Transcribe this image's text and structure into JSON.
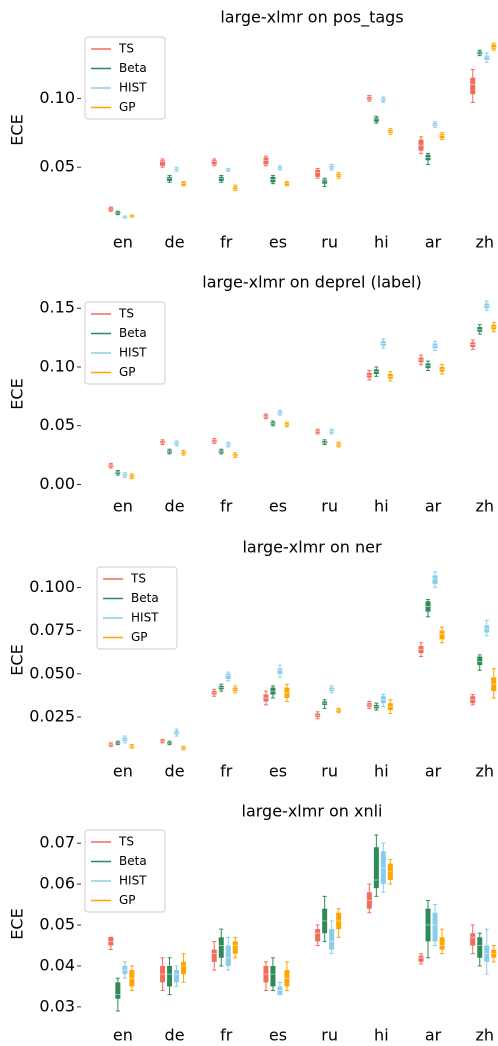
{
  "chart_data": [
    {
      "type": "box",
      "title": "large-xlmr on pos_tags",
      "ylabel": "ECE",
      "categories": [
        "en",
        "de",
        "fr",
        "es",
        "ru",
        "hi",
        "ar",
        "zh"
      ],
      "ylim": [
        0.008,
        0.146
      ],
      "yticks": [
        0.05,
        {
          "value": 0.1,
          "label": "0.10"
        }
      ],
      "legend": "upper left",
      "series": [
        {
          "name": "TS",
          "color": "#f26b5b",
          "values": [
            0.0196,
            0.054,
            0.054,
            0.055,
            0.046,
            0.1,
            0.066,
            0.11
          ],
          "q1": [
            0.0185,
            0.051,
            0.052,
            0.052,
            0.043,
            0.099,
            0.062,
            0.103
          ],
          "q3": [
            0.0205,
            0.055,
            0.055,
            0.057,
            0.048,
            0.101,
            0.07,
            0.115
          ],
          "low": [
            0.018,
            0.05,
            0.051,
            0.051,
            0.042,
            0.098,
            0.06,
            0.097
          ],
          "high": [
            0.021,
            0.056,
            0.056,
            0.058,
            0.049,
            0.102,
            0.072,
            0.121
          ]
        },
        {
          "name": "Beta",
          "color": "#2e8b57",
          "values": [
            0.0167,
            0.042,
            0.042,
            0.041,
            0.04,
            0.085,
            0.057,
            0.133
          ],
          "q1": [
            0.016,
            0.04,
            0.04,
            0.039,
            0.038,
            0.083,
            0.055,
            0.132
          ],
          "q3": [
            0.0175,
            0.043,
            0.043,
            0.043,
            0.041,
            0.086,
            0.059,
            0.134
          ],
          "low": [
            0.0155,
            0.039,
            0.039,
            0.038,
            0.036,
            0.082,
            0.052,
            0.131
          ],
          "high": [
            0.018,
            0.044,
            0.044,
            0.044,
            0.042,
            0.087,
            0.06,
            0.135
          ]
        },
        {
          "name": "HIST",
          "color": "#87ceeb",
          "values": [
            0.0138,
            0.0485,
            0.048,
            0.049,
            0.05,
            0.099,
            0.081,
            0.13
          ],
          "q1": [
            0.0135,
            0.048,
            0.0475,
            0.0485,
            0.049,
            0.098,
            0.08,
            0.128
          ],
          "q3": [
            0.0142,
            0.049,
            0.0485,
            0.05,
            0.051,
            0.1,
            0.082,
            0.131
          ],
          "low": [
            0.013,
            0.047,
            0.047,
            0.048,
            0.048,
            0.097,
            0.079,
            0.126
          ],
          "high": [
            0.0145,
            0.05,
            0.049,
            0.051,
            0.052,
            0.101,
            0.083,
            0.133
          ]
        },
        {
          "name": "GP",
          "color": "#ffa500",
          "values": [
            0.0145,
            0.038,
            0.035,
            0.038,
            0.044,
            0.076,
            0.073,
            0.137
          ],
          "q1": [
            0.014,
            0.037,
            0.034,
            0.037,
            0.043,
            0.075,
            0.071,
            0.136
          ],
          "q3": [
            0.015,
            0.039,
            0.036,
            0.039,
            0.045,
            0.077,
            0.074,
            0.139
          ],
          "low": [
            0.0138,
            0.0365,
            0.033,
            0.0365,
            0.042,
            0.074,
            0.07,
            0.135
          ],
          "high": [
            0.0152,
            0.0395,
            0.037,
            0.0395,
            0.046,
            0.078,
            0.075,
            0.14
          ]
        }
      ]
    },
    {
      "type": "box",
      "title": "large-xlmr on deprel (label)",
      "ylabel": "ECE",
      "categories": [
        "en",
        "de",
        "fr",
        "es",
        "ru",
        "hi",
        "ar",
        "zh"
      ],
      "ylim": [
        -0.003,
        0.157
      ],
      "yticks": [
        {
          "value": 0,
          "label": "0.00"
        },
        0.05,
        {
          "value": 0.1,
          "label": "0.10"
        },
        0.15
      ],
      "legend": "upper left",
      "series": [
        {
          "name": "TS",
          "color": "#f26b5b",
          "values": [
            0.016,
            0.036,
            0.037,
            0.058,
            0.045,
            0.093,
            0.106,
            0.119
          ],
          "q1": [
            0.015,
            0.035,
            0.036,
            0.057,
            0.044,
            0.091,
            0.104,
            0.117
          ],
          "q3": [
            0.017,
            0.037,
            0.038,
            0.059,
            0.046,
            0.095,
            0.108,
            0.121
          ],
          "low": [
            0.014,
            0.034,
            0.035,
            0.056,
            0.043,
            0.089,
            0.102,
            0.115
          ],
          "high": [
            0.018,
            0.038,
            0.039,
            0.06,
            0.047,
            0.097,
            0.11,
            0.123
          ]
        },
        {
          "name": "Beta",
          "color": "#2e8b57",
          "values": [
            0.01,
            0.028,
            0.028,
            0.052,
            0.036,
            0.096,
            0.101,
            0.132
          ],
          "q1": [
            0.009,
            0.027,
            0.027,
            0.051,
            0.035,
            0.094,
            0.099,
            0.13
          ],
          "q3": [
            0.011,
            0.029,
            0.029,
            0.053,
            0.037,
            0.098,
            0.103,
            0.134
          ],
          "low": [
            0.008,
            0.026,
            0.026,
            0.05,
            0.034,
            0.092,
            0.097,
            0.128
          ],
          "high": [
            0.012,
            0.03,
            0.03,
            0.054,
            0.038,
            0.1,
            0.105,
            0.136
          ]
        },
        {
          "name": "HIST",
          "color": "#87ceeb",
          "values": [
            0.008,
            0.035,
            0.034,
            0.061,
            0.045,
            0.12,
            0.118,
            0.152
          ],
          "q1": [
            0.007,
            0.034,
            0.033,
            0.06,
            0.044,
            0.118,
            0.116,
            0.15
          ],
          "q3": [
            0.009,
            0.036,
            0.035,
            0.062,
            0.046,
            0.122,
            0.12,
            0.154
          ],
          "low": [
            0.006,
            0.033,
            0.032,
            0.059,
            0.043,
            0.116,
            0.114,
            0.148
          ],
          "high": [
            0.01,
            0.037,
            0.036,
            0.063,
            0.047,
            0.124,
            0.122,
            0.156
          ]
        },
        {
          "name": "GP",
          "color": "#ffa500",
          "values": [
            0.007,
            0.027,
            0.025,
            0.051,
            0.034,
            0.092,
            0.098,
            0.134
          ],
          "q1": [
            0.006,
            0.026,
            0.024,
            0.05,
            0.033,
            0.09,
            0.096,
            0.132
          ],
          "q3": [
            0.008,
            0.028,
            0.026,
            0.052,
            0.035,
            0.094,
            0.1,
            0.136
          ],
          "low": [
            0.005,
            0.025,
            0.023,
            0.049,
            0.032,
            0.088,
            0.094,
            0.13
          ],
          "high": [
            0.009,
            0.029,
            0.027,
            0.053,
            0.036,
            0.096,
            0.102,
            0.138
          ]
        }
      ]
    },
    {
      "type": "box",
      "title": "large-xlmr on ner",
      "ylabel": "ECE",
      "categories": [
        "en",
        "de",
        "fr",
        "es",
        "ru",
        "hi",
        "ar",
        "zh"
      ],
      "ylim": [
        0.003,
        0.113
      ],
      "yticks": [
        0.025,
        {
          "value": 0.05,
          "label": "0.050"
        },
        0.075,
        {
          "value": 0.1,
          "label": "0.100"
        }
      ],
      "legend": "upper left",
      "series": [
        {
          "name": "TS",
          "color": "#f26b5b",
          "values": [
            0.009,
            0.011,
            0.039,
            0.036,
            0.026,
            0.032,
            0.064,
            0.035
          ],
          "q1": [
            0.0085,
            0.0105,
            0.038,
            0.034,
            0.025,
            0.031,
            0.062,
            0.033
          ],
          "q3": [
            0.0095,
            0.0115,
            0.04,
            0.038,
            0.027,
            0.033,
            0.066,
            0.037
          ],
          "low": [
            0.008,
            0.01,
            0.037,
            0.032,
            0.024,
            0.03,
            0.06,
            0.032
          ],
          "high": [
            0.01,
            0.012,
            0.041,
            0.04,
            0.028,
            0.034,
            0.068,
            0.038
          ]
        },
        {
          "name": "Beta",
          "color": "#2e8b57",
          "values": [
            0.01,
            0.01,
            0.042,
            0.04,
            0.033,
            0.031,
            0.089,
            0.057
          ],
          "q1": [
            0.0095,
            0.0095,
            0.041,
            0.038,
            0.032,
            0.03,
            0.086,
            0.055
          ],
          "q3": [
            0.0105,
            0.0105,
            0.043,
            0.042,
            0.034,
            0.032,
            0.092,
            0.06
          ],
          "low": [
            0.009,
            0.009,
            0.04,
            0.036,
            0.03,
            0.029,
            0.083,
            0.052
          ],
          "high": [
            0.011,
            0.011,
            0.044,
            0.043,
            0.035,
            0.033,
            0.093,
            0.061
          ]
        },
        {
          "name": "HIST",
          "color": "#87ceeb",
          "values": [
            0.012,
            0.016,
            0.049,
            0.052,
            0.041,
            0.035,
            0.105,
            0.076
          ],
          "q1": [
            0.011,
            0.015,
            0.047,
            0.05,
            0.04,
            0.033,
            0.102,
            0.074
          ],
          "q3": [
            0.013,
            0.017,
            0.05,
            0.053,
            0.042,
            0.037,
            0.107,
            0.078
          ],
          "low": [
            0.01,
            0.014,
            0.046,
            0.048,
            0.039,
            0.031,
            0.1,
            0.072
          ],
          "high": [
            0.014,
            0.018,
            0.051,
            0.055,
            0.043,
            0.038,
            0.109,
            0.081
          ]
        },
        {
          "name": "GP",
          "color": "#ffa500",
          "values": [
            0.008,
            0.007,
            0.041,
            0.039,
            0.029,
            0.031,
            0.073,
            0.044
          ],
          "q1": [
            0.0075,
            0.0065,
            0.04,
            0.036,
            0.028,
            0.029,
            0.07,
            0.04
          ],
          "q3": [
            0.0085,
            0.0075,
            0.042,
            0.042,
            0.0295,
            0.033,
            0.075,
            0.048
          ],
          "low": [
            0.007,
            0.006,
            0.039,
            0.034,
            0.0275,
            0.027,
            0.068,
            0.036
          ],
          "high": [
            0.009,
            0.008,
            0.043,
            0.044,
            0.03,
            0.035,
            0.077,
            0.053
          ]
        }
      ]
    },
    {
      "type": "box",
      "title": "large-xlmr on xnli",
      "ylabel": "ECE",
      "categories": [
        "en",
        "de",
        "fr",
        "es",
        "ru",
        "hi",
        "ar",
        "zh"
      ],
      "ylim": [
        0.0268,
        0.0737
      ],
      "yticks": [
        0.03,
        0.04,
        0.05,
        0.06,
        0.07
      ],
      "legend": "upper left",
      "series": [
        {
          "name": "TS",
          "color": "#f26b5b",
          "values": [
            0.046,
            0.038,
            0.043,
            0.038,
            0.048,
            0.056,
            0.042,
            0.047
          ],
          "q1": [
            0.045,
            0.036,
            0.041,
            0.036,
            0.046,
            0.054,
            0.041,
            0.045
          ],
          "q3": [
            0.047,
            0.04,
            0.044,
            0.04,
            0.049,
            0.058,
            0.0425,
            0.048
          ],
          "low": [
            0.044,
            0.034,
            0.039,
            0.034,
            0.045,
            0.053,
            0.0405,
            0.043
          ],
          "high": [
            0.047,
            0.042,
            0.046,
            0.041,
            0.05,
            0.06,
            0.043,
            0.05
          ]
        },
        {
          "name": "Beta",
          "color": "#2e8b57",
          "values": [
            0.033,
            0.038,
            0.045,
            0.038,
            0.051,
            0.061,
            0.05,
            0.045
          ],
          "q1": [
            0.032,
            0.035,
            0.042,
            0.035,
            0.048,
            0.059,
            0.046,
            0.042
          ],
          "q3": [
            0.036,
            0.04,
            0.047,
            0.04,
            0.054,
            0.069,
            0.054,
            0.047
          ],
          "low": [
            0.029,
            0.033,
            0.04,
            0.034,
            0.046,
            0.057,
            0.042,
            0.04
          ],
          "high": [
            0.037,
            0.042,
            0.049,
            0.042,
            0.057,
            0.072,
            0.056,
            0.048
          ]
        },
        {
          "name": "HIST",
          "color": "#87ceeb",
          "values": [
            0.039,
            0.038,
            0.042,
            0.034,
            0.046,
            0.064,
            0.05,
            0.043
          ],
          "q1": [
            0.038,
            0.036,
            0.04,
            0.033,
            0.044,
            0.06,
            0.046,
            0.041
          ],
          "q3": [
            0.04,
            0.039,
            0.045,
            0.035,
            0.049,
            0.068,
            0.053,
            0.045
          ],
          "low": [
            0.037,
            0.035,
            0.039,
            0.033,
            0.043,
            0.058,
            0.045,
            0.038
          ],
          "high": [
            0.041,
            0.04,
            0.047,
            0.036,
            0.051,
            0.07,
            0.055,
            0.049
          ]
        },
        {
          "name": "GP",
          "color": "#ffa500",
          "values": [
            0.037,
            0.04,
            0.045,
            0.037,
            0.051,
            0.063,
            0.045,
            0.043
          ],
          "q1": [
            0.035,
            0.038,
            0.043,
            0.035,
            0.049,
            0.061,
            0.044,
            0.042
          ],
          "q3": [
            0.039,
            0.041,
            0.046,
            0.039,
            0.053,
            0.065,
            0.047,
            0.044
          ],
          "low": [
            0.034,
            0.036,
            0.042,
            0.034,
            0.047,
            0.06,
            0.043,
            0.041
          ],
          "high": [
            0.04,
            0.043,
            0.047,
            0.041,
            0.054,
            0.066,
            0.049,
            0.045
          ]
        }
      ]
    }
  ]
}
